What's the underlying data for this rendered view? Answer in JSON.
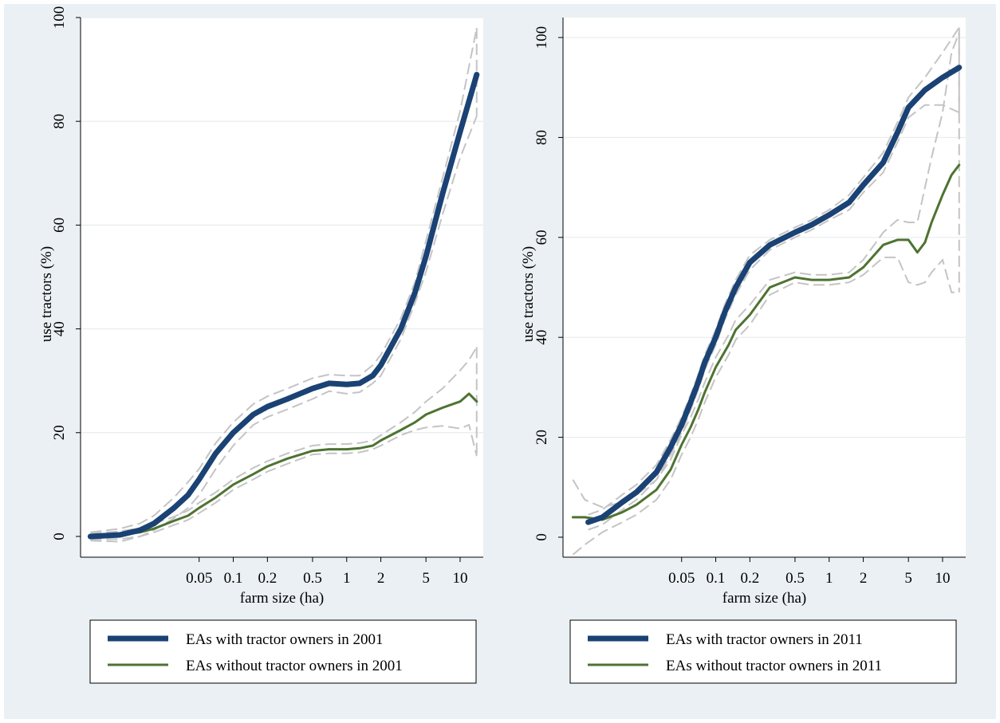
{
  "chart_data": [
    {
      "type": "line",
      "title": "",
      "xlabel": "farm size (ha)",
      "ylabel": "use tractors (%)",
      "xscale": "log",
      "xlim": [
        0.0045,
        16
      ],
      "ylim": [
        -4,
        100
      ],
      "xticks": [
        0.05,
        0.1,
        0.2,
        0.5,
        1,
        2,
        5,
        10
      ],
      "xtick_labels": [
        "0.05",
        "0.1",
        "0.2",
        "0.5",
        "1",
        "2",
        "5",
        "10"
      ],
      "yticks": [
        0,
        20,
        40,
        60,
        80,
        100
      ],
      "ytick_labels": [
        "0",
        "20",
        "40",
        "60",
        "80",
        "100"
      ],
      "grid": "horizontal",
      "legend": "below",
      "series": [
        {
          "name": "EAs with tractor owners in 2001",
          "color": "#1a4274",
          "width": "thick",
          "x": [
            0.0055,
            0.01,
            0.015,
            0.02,
            0.03,
            0.04,
            0.05,
            0.07,
            0.1,
            0.15,
            0.2,
            0.3,
            0.5,
            0.7,
            1,
            1.3,
            1.7,
            2,
            3,
            4,
            5,
            7,
            10,
            14
          ],
          "y": [
            0,
            0.3,
            1.2,
            2.5,
            5.5,
            8,
            11,
            16,
            20,
            23.5,
            25,
            26.5,
            28.5,
            29.5,
            29.3,
            29.5,
            31,
            33,
            40,
            47,
            54,
            66,
            78,
            89
          ],
          "ci_upper": [
            0.8,
            1.5,
            2.5,
            4,
            7.5,
            10.5,
            13,
            18,
            22,
            25.5,
            27,
            28.5,
            30.5,
            31.2,
            31,
            31,
            33,
            35,
            42,
            49,
            57,
            69,
            82,
            98
          ],
          "ci_lower": [
            -0.8,
            -1.0,
            0,
            1.2,
            3.5,
            5.5,
            8,
            13,
            17.5,
            21.5,
            23,
            24.5,
            26.5,
            28,
            27.5,
            27.8,
            29.5,
            31,
            38,
            45,
            51,
            62,
            73,
            81
          ]
        },
        {
          "name": "EAs without tractor owners in 2001",
          "color": "#4e7331",
          "width": "thin",
          "x": [
            0.0055,
            0.01,
            0.015,
            0.02,
            0.03,
            0.04,
            0.05,
            0.07,
            0.1,
            0.15,
            0.2,
            0.3,
            0.5,
            0.7,
            1,
            1.3,
            1.7,
            2,
            3,
            4,
            5,
            7,
            10,
            12,
            14
          ],
          "y": [
            0,
            0.3,
            0.8,
            1.5,
            3,
            4,
            5.5,
            7.5,
            10,
            12,
            13.5,
            15,
            16.5,
            16.8,
            16.8,
            17,
            17.5,
            18.5,
            20.5,
            22,
            23.5,
            24.8,
            26,
            27.5,
            26
          ],
          "ci_upper": [
            0.6,
            1.0,
            1.6,
            2.5,
            3.8,
            5,
            6.5,
            8.5,
            11,
            13.2,
            14.5,
            16,
            17.5,
            17.8,
            17.8,
            18,
            18.5,
            19.5,
            22,
            24,
            26,
            28.5,
            32,
            34,
            36.5
          ],
          "ci_lower": [
            -0.6,
            -0.5,
            0,
            0.8,
            2.2,
            3.2,
            4.5,
            6.5,
            9,
            11,
            12.5,
            14,
            15.8,
            16,
            16,
            16.2,
            16.8,
            17.5,
            19.5,
            20.5,
            21,
            21.3,
            20.8,
            21.5,
            15.5
          ]
        }
      ]
    },
    {
      "type": "line",
      "title": "",
      "xlabel": "farm size (ha)",
      "ylabel": "use tractors (%)",
      "xscale": "log",
      "xlim": [
        0.0045,
        16
      ],
      "ylim": [
        -4,
        104
      ],
      "xticks": [
        0.05,
        0.1,
        0.2,
        0.5,
        1,
        2,
        5,
        10
      ],
      "xtick_labels": [
        "0.05",
        "0.1",
        "0.2",
        "0.5",
        "1",
        "2",
        "5",
        "10"
      ],
      "yticks": [
        0,
        20,
        40,
        60,
        80,
        100
      ],
      "ytick_labels": [
        "0",
        "20",
        "40",
        "60",
        "80",
        "100"
      ],
      "grid": "horizontal",
      "legend": "below",
      "series": [
        {
          "name": "EAs with tractor owners in 2011",
          "color": "#1a4274",
          "width": "thick",
          "x": [
            0.0075,
            0.01,
            0.015,
            0.02,
            0.03,
            0.04,
            0.05,
            0.06,
            0.07,
            0.08,
            0.1,
            0.12,
            0.15,
            0.2,
            0.3,
            0.5,
            0.7,
            1,
            1.5,
            2,
            3,
            4,
            5,
            7,
            10,
            14
          ],
          "y": [
            3,
            4,
            7,
            9,
            13,
            18,
            22.5,
            27,
            31,
            35,
            40,
            45,
            50,
            55,
            58.5,
            61,
            62.5,
            64.5,
            67,
            70.5,
            75,
            81,
            86,
            89.5,
            92,
            94
          ],
          "ci_upper": [
            4.5,
            5.5,
            8.5,
            10.5,
            14.5,
            19.5,
            24,
            28.5,
            32.5,
            36.5,
            41.5,
            46.5,
            51.5,
            56.5,
            59.5,
            62,
            63.5,
            65.5,
            68.5,
            72,
            77,
            83,
            88,
            92,
            97,
            102
          ],
          "ci_lower": [
            1.5,
            2.5,
            5.5,
            7.5,
            11.5,
            16.5,
            21,
            25.5,
            29.5,
            33.5,
            38.5,
            43.5,
            48.5,
            53.5,
            57.5,
            60,
            61.5,
            63.5,
            65.5,
            69,
            73,
            79,
            84,
            86.5,
            86.5,
            85
          ]
        },
        {
          "name": "EAs without tractor owners in 2011",
          "color": "#4e7331",
          "width": "thin",
          "x": [
            0.0055,
            0.007,
            0.01,
            0.015,
            0.02,
            0.03,
            0.04,
            0.05,
            0.06,
            0.07,
            0.08,
            0.1,
            0.13,
            0.15,
            0.2,
            0.3,
            0.5,
            0.7,
            1,
            1.5,
            2,
            3,
            4,
            5,
            6,
            7,
            8,
            10,
            12,
            14
          ],
          "y": [
            4,
            4,
            3.5,
            5,
            6.5,
            9.5,
            13.5,
            18.5,
            22,
            25.5,
            29,
            34,
            38.5,
            41.5,
            44.5,
            50,
            52,
            51.5,
            51.5,
            52,
            54,
            58.5,
            59.5,
            59.5,
            57,
            59,
            63,
            68.5,
            72.5,
            74.5
          ],
          "ci_upper": [
            11.5,
            7.5,
            6,
            7,
            8.5,
            11.5,
            15.5,
            20.5,
            24,
            27.5,
            31,
            36,
            40.5,
            43.5,
            46.5,
            51.5,
            53,
            52.5,
            52.5,
            53,
            55.5,
            61,
            63.5,
            63,
            63,
            70,
            76,
            85,
            97,
            101
          ],
          "ci_lower": [
            -3.5,
            -1.5,
            1,
            3,
            4.5,
            7.5,
            11.5,
            16.5,
            20,
            23.5,
            27,
            32,
            36.5,
            39.5,
            42.5,
            48.5,
            51,
            50.5,
            50.5,
            51,
            52.5,
            56,
            56,
            51,
            50.5,
            51,
            53,
            55.5,
            49,
            49
          ]
        }
      ]
    }
  ]
}
